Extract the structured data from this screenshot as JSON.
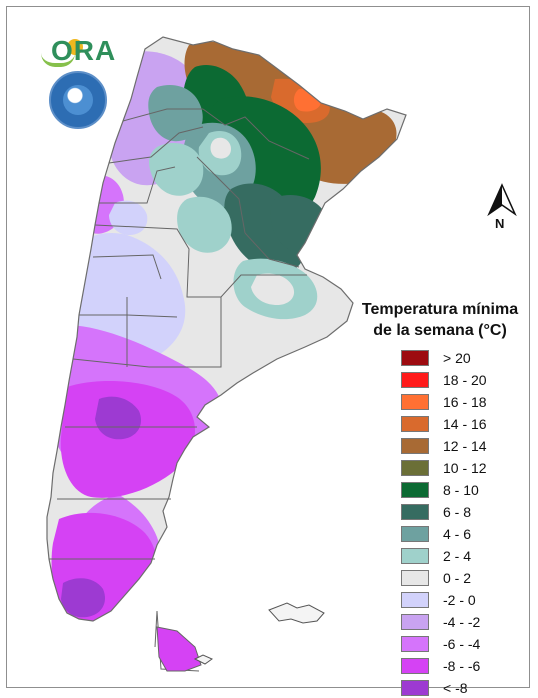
{
  "map": {
    "title_line1": "Temperatura mínima",
    "title_line2": "de la semana (°C)",
    "north_label": "N",
    "logo_text": "ORA",
    "legend": [
      {
        "label": "> 20",
        "color": "#9d0b10"
      },
      {
        "label": "18 - 20",
        "color": "#ff1b1b"
      },
      {
        "label": "16 - 18",
        "color": "#ff7033"
      },
      {
        "label": "14 - 16",
        "color": "#d96a2d"
      },
      {
        "label": "12 - 14",
        "color": "#a86a34"
      },
      {
        "label": "10 - 12",
        "color": "#6b6f37"
      },
      {
        "label": "8 - 10",
        "color": "#0c6a33"
      },
      {
        "label": "6 - 8",
        "color": "#366c61"
      },
      {
        "label": "4 - 6",
        "color": "#6ea1a0"
      },
      {
        "label": "2 - 4",
        "color": "#9fd1cb"
      },
      {
        "label": "0 - 2",
        "color": "#e7e7e7"
      },
      {
        "label": "-2 - 0",
        "color": "#d2d2fb"
      },
      {
        "label": "-4 - -2",
        "color": "#c9a3f1"
      },
      {
        "label": "-6 - -4",
        "color": "#d574fb"
      },
      {
        "label": "-8 - -6",
        "color": "#d542f4"
      },
      {
        "label": "< -8",
        "color": "#9d3ad2"
      }
    ]
  }
}
